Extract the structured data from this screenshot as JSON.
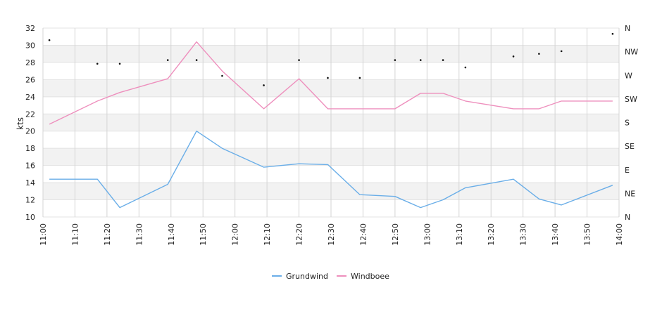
{
  "chart_data": {
    "type": "line",
    "xlabel": "",
    "ylabel": "kts",
    "ylim": [
      10,
      32
    ],
    "yticks": [
      10,
      12,
      14,
      16,
      18,
      20,
      22,
      24,
      26,
      28,
      30,
      32
    ],
    "xlim": [
      "11:00",
      "14:00"
    ],
    "xticks": [
      "11:00",
      "11:10",
      "11:20",
      "11:30",
      "11:40",
      "11:50",
      "12:00",
      "12:10",
      "12:20",
      "12:30",
      "12:40",
      "12:50",
      "13:00",
      "13:10",
      "13:20",
      "13:30",
      "13:40",
      "13:50",
      "14:00"
    ],
    "direction_axis": {
      "labels": [
        "N",
        "NE",
        "E",
        "SE",
        "S",
        "SW",
        "W",
        "NW",
        "N"
      ],
      "range_degrees": [
        0,
        360
      ]
    },
    "grid": true,
    "legend_position": "bottom",
    "series": [
      {
        "name": "Grundwind",
        "color": "#6aaee8",
        "x": [
          "11:02",
          "11:17",
          "11:24",
          "11:39",
          "11:48",
          "11:56",
          "12:09",
          "12:20",
          "12:29",
          "12:39",
          "12:50",
          "12:58",
          "13:05",
          "13:12",
          "13:27",
          "13:35",
          "13:42",
          "13:58"
        ],
        "values": [
          14.4,
          14.4,
          11.1,
          13.8,
          20.0,
          18.0,
          15.8,
          16.2,
          16.1,
          12.6,
          12.4,
          11.1,
          12.0,
          13.4,
          14.4,
          12.1,
          11.4,
          13.7
        ]
      },
      {
        "name": "Windboee",
        "color": "#ee8fbd",
        "x": [
          "11:02",
          "11:17",
          "11:24",
          "11:39",
          "11:48",
          "11:56",
          "12:09",
          "12:20",
          "12:29",
          "12:39",
          "12:50",
          "12:58",
          "13:05",
          "13:12",
          "13:27",
          "13:35",
          "13:42",
          "13:58"
        ],
        "values": [
          20.8,
          23.5,
          24.5,
          26.1,
          30.4,
          27.0,
          22.6,
          26.1,
          22.6,
          22.6,
          22.6,
          24.4,
          24.4,
          23.5,
          22.6,
          22.6,
          23.5,
          23.5
        ]
      },
      {
        "name": "",
        "kind": "direction",
        "color": "#111111",
        "x": [
          "11:02",
          "11:17",
          "11:24",
          "11:39",
          "11:48",
          "11:56",
          "12:09",
          "12:20",
          "12:29",
          "12:39",
          "12:50",
          "12:58",
          "13:05",
          "13:12",
          "13:27",
          "13:35",
          "13:42",
          "13:58"
        ],
        "degrees": [
          337,
          292,
          292,
          299,
          299,
          269,
          251,
          299,
          265,
          265,
          299,
          299,
          299,
          285,
          306,
          311,
          316,
          349
        ]
      }
    ]
  }
}
